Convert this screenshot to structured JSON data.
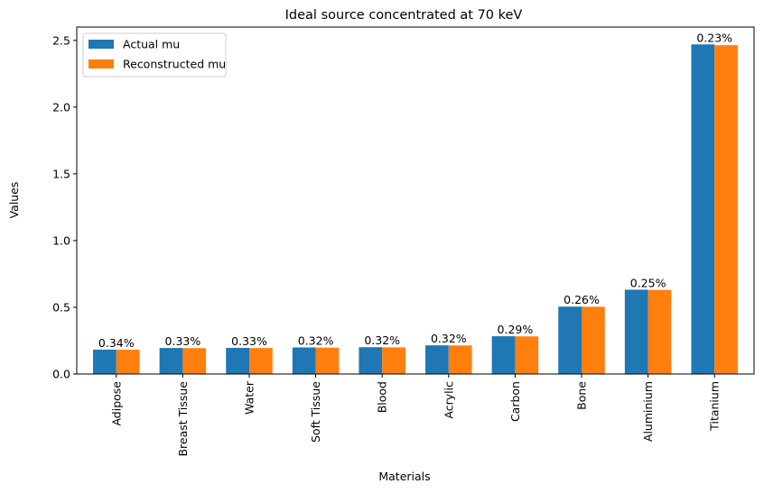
{
  "chart_data": {
    "type": "bar",
    "title": "Ideal source concentrated at 70 keV",
    "xlabel": "Materials",
    "ylabel": "Values",
    "ylim": [
      0,
      2.6
    ],
    "yticks": [
      0.0,
      0.5,
      1.0,
      1.5,
      2.0,
      2.5
    ],
    "ytick_labels": [
      "0.0",
      "0.5",
      "1.0",
      "1.5",
      "2.0",
      "2.5"
    ],
    "categories": [
      "Adipose",
      "Breast Tissue",
      "Water",
      "Soft Tissue",
      "Blood",
      "Acrylic",
      "Carbon",
      "Bone",
      "Aluminium",
      "Titanium"
    ],
    "series": [
      {
        "name": "Actual mu",
        "color": "#1f77b4",
        "values": [
          0.183,
          0.195,
          0.196,
          0.199,
          0.201,
          0.215,
          0.283,
          0.505,
          0.632,
          2.47
        ]
      },
      {
        "name": "Reconstructed mu",
        "color": "#ff7f0e",
        "values": [
          0.182,
          0.194,
          0.195,
          0.198,
          0.2,
          0.214,
          0.282,
          0.504,
          0.63,
          2.464
        ]
      }
    ],
    "data_labels": [
      "0.34%",
      "0.33%",
      "0.33%",
      "0.32%",
      "0.32%",
      "0.32%",
      "0.29%",
      "0.26%",
      "0.25%",
      "0.23%"
    ],
    "legend_position": "top-left",
    "grid": false
  }
}
